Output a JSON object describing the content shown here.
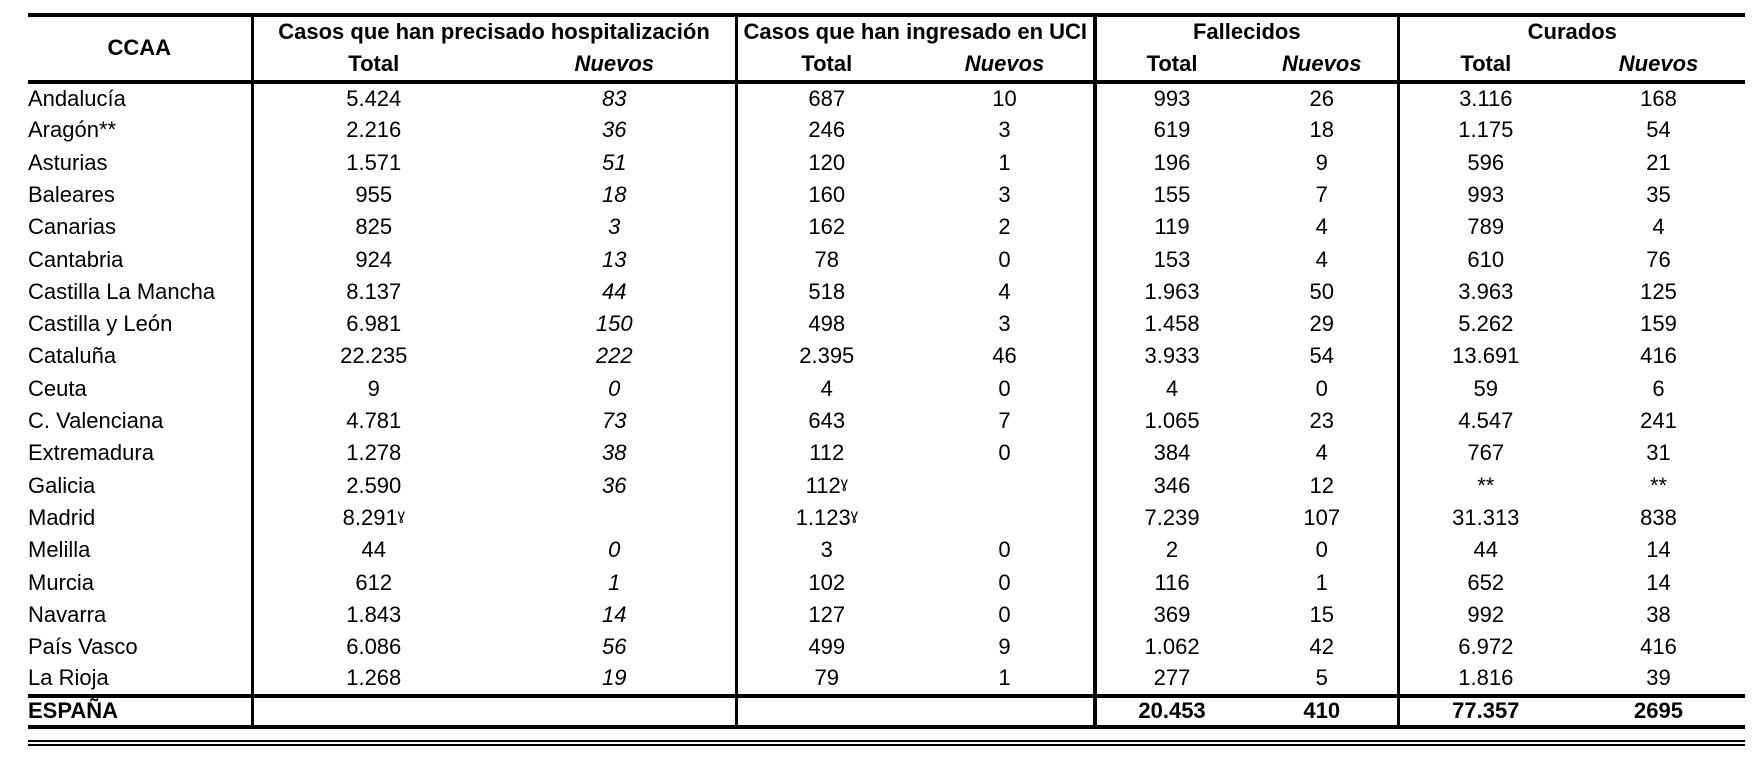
{
  "table": {
    "ccaa_header": "CCAA",
    "groups": [
      {
        "label": "Casos que han precisado hospitalización",
        "sub": [
          "Total",
          "Nuevos"
        ]
      },
      {
        "label": "Casos que han ingresado en UCI",
        "sub": [
          "Total",
          "Nuevos"
        ]
      },
      {
        "label": "Fallecidos",
        "sub": [
          "Total",
          "Nuevos"
        ]
      },
      {
        "label": "Curados",
        "sub": [
          "Total",
          "Nuevos"
        ]
      }
    ],
    "rows": [
      {
        "name": "Andalucía",
        "values": [
          "5.424",
          "83",
          "687",
          "10",
          "993",
          "26",
          "3.116",
          "168"
        ]
      },
      {
        "name": "Aragón**",
        "values": [
          "2.216",
          "36",
          "246",
          "3",
          "619",
          "18",
          "1.175",
          "54"
        ]
      },
      {
        "name": "Asturias",
        "values": [
          "1.571",
          "51",
          "120",
          "1",
          "196",
          "9",
          "596",
          "21"
        ]
      },
      {
        "name": "Baleares",
        "values": [
          "955",
          "18",
          "160",
          "3",
          "155",
          "7",
          "993",
          "35"
        ]
      },
      {
        "name": "Canarias",
        "values": [
          "825",
          "3",
          "162",
          "2",
          "119",
          "4",
          "789",
          "4"
        ]
      },
      {
        "name": "Cantabria",
        "values": [
          "924",
          "13",
          "78",
          "0",
          "153",
          "4",
          "610",
          "76"
        ]
      },
      {
        "name": "Castilla La Mancha",
        "values": [
          "8.137",
          "44",
          "518",
          "4",
          "1.963",
          "50",
          "3.963",
          "125"
        ]
      },
      {
        "name": "Castilla y León",
        "values": [
          "6.981",
          "150",
          "498",
          "3",
          "1.458",
          "29",
          "5.262",
          "159"
        ]
      },
      {
        "name": "Cataluña",
        "values": [
          "22.235",
          "222",
          "2.395",
          "46",
          "3.933",
          "54",
          "13.691",
          "416"
        ]
      },
      {
        "name": "Ceuta",
        "values": [
          "9",
          "0",
          "4",
          "0",
          "4",
          "0",
          "59",
          "6"
        ]
      },
      {
        "name": "C. Valenciana",
        "values": [
          "4.781",
          "73",
          "643",
          "7",
          "1.065",
          "23",
          "4.547",
          "241"
        ]
      },
      {
        "name": "Extremadura",
        "values": [
          "1.278",
          "38",
          "112",
          "0",
          "384",
          "4",
          "767",
          "31"
        ]
      },
      {
        "name": "Galicia",
        "values": [
          "2.590",
          "36",
          "112ˠ",
          "",
          "346",
          "12",
          "**",
          "**"
        ]
      },
      {
        "name": "Madrid",
        "values": [
          "8.291ˠ",
          "",
          "1.123ˠ",
          "",
          "7.239",
          "107",
          "31.313",
          "838"
        ]
      },
      {
        "name": "Melilla",
        "values": [
          "44",
          "0",
          "3",
          "0",
          "2",
          "0",
          "44",
          "14"
        ]
      },
      {
        "name": "Murcia",
        "values": [
          "612",
          "1",
          "102",
          "0",
          "116",
          "1",
          "652",
          "14"
        ]
      },
      {
        "name": "Navarra",
        "values": [
          "1.843",
          "14",
          "127",
          "0",
          "369",
          "15",
          "992",
          "38"
        ]
      },
      {
        "name": "País Vasco",
        "values": [
          "6.086",
          "56",
          "499",
          "9",
          "1.062",
          "42",
          "6.972",
          "416"
        ]
      },
      {
        "name": "La Rioja",
        "values": [
          "1.268",
          "19",
          "79",
          "1",
          "277",
          "5",
          "1.816",
          "39"
        ]
      }
    ],
    "total_row": {
      "name": "ESPAÑA",
      "values": [
        "",
        "",
        "",
        "",
        "20.453",
        "410",
        "77.357",
        "2695"
      ]
    }
  }
}
